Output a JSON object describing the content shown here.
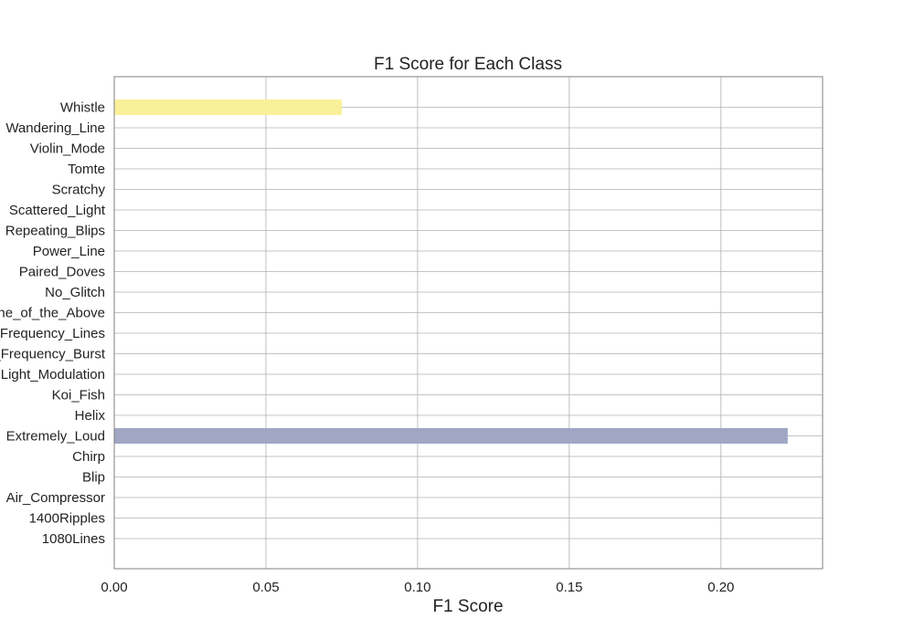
{
  "chart_data": {
    "type": "bar",
    "orientation": "horizontal",
    "title": "F1 Score for Each Class",
    "xlabel": "F1 Score",
    "ylabel": "",
    "xlim": [
      0,
      0.2335
    ],
    "xticks": [
      0.0,
      0.05,
      0.1,
      0.15,
      0.2
    ],
    "xtick_labels": [
      "0.00",
      "0.05",
      "0.10",
      "0.15",
      "0.20"
    ],
    "grid": true,
    "categories": [
      "1080Lines",
      "1400Ripples",
      "Air_Compressor",
      "Blip",
      "Chirp",
      "Extremely_Loud",
      "Helix",
      "Koi_Fish",
      "Light_Modulation",
      "Low_Frequency_Burst",
      "Low_Frequency_Lines",
      "None_of_the_Above",
      "No_Glitch",
      "Paired_Doves",
      "Power_Line",
      "Repeating_Blips",
      "Scattered_Light",
      "Scratchy",
      "Tomte",
      "Violin_Mode",
      "Wandering_Line",
      "Whistle"
    ],
    "values": [
      0,
      0,
      0,
      0,
      0,
      0.222,
      0,
      0,
      0,
      0,
      0,
      0,
      0,
      0,
      0,
      0,
      0,
      0,
      0,
      0,
      0,
      0.075
    ],
    "bar_colors": [
      "#3b4a8c",
      "#3b4a8c",
      "#3d5a93",
      "#3f6a98",
      "#43799b",
      "#a0a6c4",
      "#4a959f",
      "#52a39f",
      "#5cb09c",
      "#68bd96",
      "#76c98f",
      "#86d386",
      "#97dd7d",
      "#a9e573",
      "#bbeb6a",
      "#cdef62",
      "#ddf05c",
      "#ebef59",
      "#f4ec58",
      "#f8e95a",
      "#fae85c",
      "#fbf09a"
    ]
  }
}
